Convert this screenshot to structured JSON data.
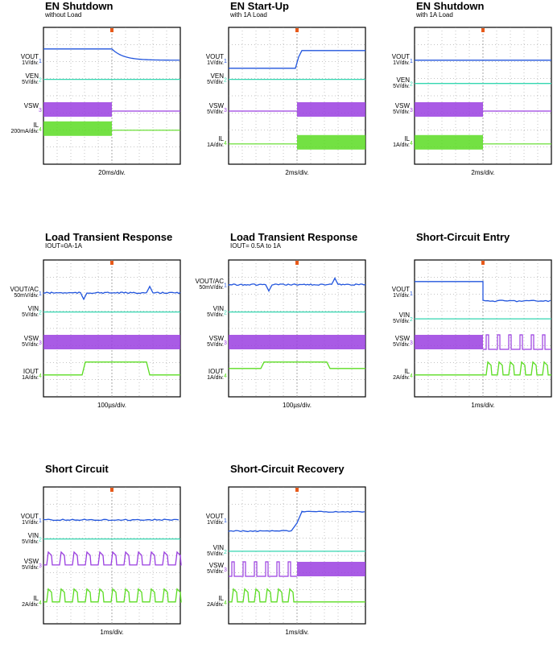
{
  "colors": {
    "vout": "#2255dd",
    "ven": "#33d6b0",
    "vsw": "#9a3ee0",
    "il": "#5bdc22",
    "trigger": "#e85a1a",
    "grid": "#888888"
  },
  "chart_data": [
    {
      "type": "line",
      "title": "EN Shutdown",
      "subtitle": "without Load",
      "time_div": "20ms/div.",
      "channels": [
        {
          "sig": "VOUT",
          "sub": "OUT",
          "scale": "1V/div.",
          "marker": "1"
        },
        {
          "sig": "VEN",
          "sub": "EN",
          "scale": "5V/div.",
          "marker": "2"
        },
        {
          "sig": "VSW",
          "sub": "SW",
          "scale": "",
          "marker": "3"
        },
        {
          "sig": "IL",
          "sub": "L",
          "scale": "200mA/div.",
          "marker": "4"
        }
      ],
      "waveforms": {
        "vout": "shutdown_decay",
        "ven": "flat",
        "vsw": "switching_then_off",
        "il": "switching_then_off"
      }
    },
    {
      "type": "line",
      "title": "EN Start-Up",
      "subtitle": "with 1A Load",
      "time_div": "2ms/div.",
      "channels": [
        {
          "sig": "VOUT",
          "sub": "OUT",
          "scale": "1V/div.",
          "marker": "1"
        },
        {
          "sig": "VEN",
          "sub": "EN",
          "scale": "5V/div.",
          "marker": "2"
        },
        {
          "sig": "VSW",
          "sub": "SW",
          "scale": "5V/div.",
          "marker": "3"
        },
        {
          "sig": "IL",
          "sub": "L",
          "scale": "1A/div.",
          "marker": "4"
        }
      ],
      "waveforms": {
        "vout": "startup_rise",
        "ven": "flat",
        "vsw": "off_then_switching",
        "il": "off_then_switching"
      }
    },
    {
      "type": "line",
      "title": "EN Shutdown",
      "subtitle": "with 1A Load",
      "time_div": "2ms/div.",
      "channels": [
        {
          "sig": "VOUT",
          "sub": "OUT",
          "scale": "1V/div.",
          "marker": "1"
        },
        {
          "sig": "VEN",
          "sub": "EN",
          "scale": "5V/div.",
          "marker": "2"
        },
        {
          "sig": "VSW",
          "sub": "SW",
          "scale": "5V/div.",
          "marker": "3"
        },
        {
          "sig": "IL",
          "sub": "L",
          "scale": "1A/div.",
          "marker": "4"
        }
      ],
      "waveforms": {
        "vout": "step_down",
        "ven": "flat",
        "vsw": "switching_then_off",
        "il": "switching_then_off"
      }
    },
    {
      "type": "line",
      "title": "Load Transient Response",
      "subtitle": "IOUT=0A-1A",
      "time_div": "100µs/div.",
      "channels": [
        {
          "sig": "VOUT/AC",
          "sub": "OUT",
          "scale": "50mV/div.",
          "marker": "1"
        },
        {
          "sig": "VIN",
          "sub": "IN",
          "scale": "5V/div.",
          "marker": "2"
        },
        {
          "sig": "VSW",
          "sub": "SW",
          "scale": "5V/div.",
          "marker": "3"
        },
        {
          "sig": "IOUT",
          "sub": "OUT",
          "scale": "1A/div.",
          "marker": "4"
        }
      ],
      "load_step_A": [
        0,
        1
      ],
      "waveforms": {
        "vout": "transient_spikes",
        "ven": "flat",
        "vsw": "switching",
        "il": "load_pulse"
      }
    },
    {
      "type": "line",
      "title": "Load Transient Response",
      "subtitle": "IOUT= 0.5A to 1A",
      "time_div": "100µs/div.",
      "channels": [
        {
          "sig": "VOUT/AC",
          "sub": "OUT",
          "scale": "50mV/div.",
          "marker": "1"
        },
        {
          "sig": "VIN",
          "sub": "IN",
          "scale": "5V/div.",
          "marker": "2"
        },
        {
          "sig": "VSW",
          "sub": "SW",
          "scale": "5V/div.",
          "marker": "3"
        },
        {
          "sig": "IOUT",
          "sub": "OUT",
          "scale": "1A/div.",
          "marker": "4"
        }
      ],
      "load_step_A": [
        0.5,
        1
      ],
      "waveforms": {
        "vout": "transient_spikes",
        "ven": "flat",
        "vsw": "switching",
        "il": "load_pulse_small"
      }
    },
    {
      "type": "line",
      "title": "Short-Circuit Entry",
      "subtitle": "",
      "time_div": "1ms/div.",
      "channels": [
        {
          "sig": "VOUT",
          "sub": "OUT",
          "scale": "1V/div.",
          "marker": "1"
        },
        {
          "sig": "VIN",
          "sub": "IN",
          "scale": "5V/div.",
          "marker": "2"
        },
        {
          "sig": "VSW",
          "sub": "SW",
          "scale": "5V/div.",
          "marker": "3"
        },
        {
          "sig": "IL",
          "sub": "L",
          "scale": "2A/div.",
          "marker": "4"
        }
      ],
      "waveforms": {
        "vout": "step_down_noisy",
        "ven": "flat",
        "vsw": "switching_then_hiccup",
        "il": "flat_then_hiccup"
      }
    },
    {
      "type": "line",
      "title": "Short Circuit",
      "subtitle": "",
      "time_div": "1ms/div.",
      "channels": [
        {
          "sig": "VOUT",
          "sub": "OUT",
          "scale": "1V/div.",
          "marker": "1"
        },
        {
          "sig": "VIN",
          "sub": "IN",
          "scale": "5V/div.",
          "marker": "2"
        },
        {
          "sig": "VSW",
          "sub": "SW",
          "scale": "5V/div.",
          "marker": "3"
        },
        {
          "sig": "IL",
          "sub": "L",
          "scale": "2A/div.",
          "marker": "4"
        }
      ],
      "waveforms": {
        "vout": "flat_low",
        "ven": "flat",
        "vsw": "hiccup",
        "il": "hiccup"
      }
    },
    {
      "type": "line",
      "title": "Short-Circuit Recovery",
      "subtitle": "",
      "time_div": "1ms/div.",
      "channels": [
        {
          "sig": "VOUT",
          "sub": "OUT",
          "scale": "1V/div.",
          "marker": "1"
        },
        {
          "sig": "VIN",
          "sub": "IN",
          "scale": "5V/div.",
          "marker": "2"
        },
        {
          "sig": "VSW",
          "sub": "SW",
          "scale": "5V/div.",
          "marker": "3"
        },
        {
          "sig": "IL",
          "sub": "L",
          "scale": "2A/div.",
          "marker": "4"
        }
      ],
      "waveforms": {
        "vout": "recovery_rise",
        "ven": "flat",
        "vsw": "hiccup_then_switching",
        "il": "hiccup_then_flat"
      }
    }
  ]
}
